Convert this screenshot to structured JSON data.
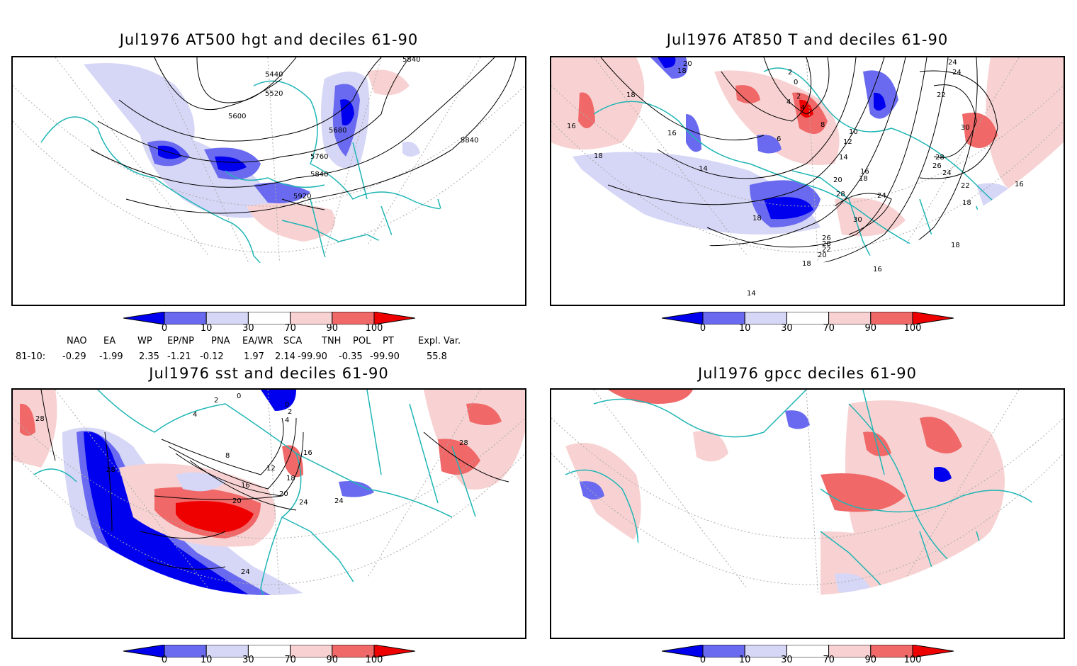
{
  "panels": {
    "hgt": {
      "title": "Jul1976 AT500 hgt and deciles 61-90",
      "contour_labels": [
        "5840",
        "5440",
        "5520",
        "5600",
        "5680",
        "5840",
        "5760",
        "5840",
        "5920"
      ]
    },
    "t850": {
      "title": "Jul1976 AT850 T and deciles 61-90",
      "contour_labels": [
        "20",
        "18",
        "18",
        "16",
        "16",
        "18",
        "14",
        "18",
        "6",
        "4",
        "2",
        "0",
        "2",
        "4",
        "8",
        "10",
        "12",
        "14",
        "16",
        "18",
        "20",
        "28",
        "30",
        "24",
        "26",
        "28",
        "22",
        "20",
        "18",
        "16",
        "14",
        "24",
        "22",
        "24",
        "30",
        "28",
        "26",
        "24",
        "22",
        "18",
        "16",
        "18"
      ]
    },
    "sst": {
      "title": "Jul1976 sst and deciles 61-90",
      "contour_labels": [
        "28",
        "28",
        "0",
        "2",
        "4",
        "0",
        "2",
        "4",
        "8",
        "12",
        "16",
        "16",
        "18",
        "20",
        "24",
        "24",
        "20",
        "24",
        "28"
      ]
    },
    "gpcc": {
      "title": "Jul1976 gpcc deciles 61-90"
    }
  },
  "colorbar": {
    "tick_labels": [
      "0",
      "10",
      "30",
      "70",
      "90",
      "100"
    ],
    "colors": [
      "#0000ee",
      "#6a6af0",
      "#d6d6f6",
      "#ffffff",
      "#f8d2d2",
      "#f06868",
      "#ee0000"
    ]
  },
  "indices": {
    "headers": [
      "NAO",
      "EA",
      "WP",
      "EP/NP",
      "PNA",
      "EA/WR",
      "SCA",
      "TNH",
      "POL",
      "PT",
      "Expl. Var."
    ],
    "row_label": "81-10:",
    "values": [
      "-0.29",
      "-1.99",
      "2.35",
      "-1.21",
      "-0.12",
      "1.97",
      "2.14",
      "-99.90",
      "-0.35",
      "-99.90",
      "55.8"
    ]
  }
}
